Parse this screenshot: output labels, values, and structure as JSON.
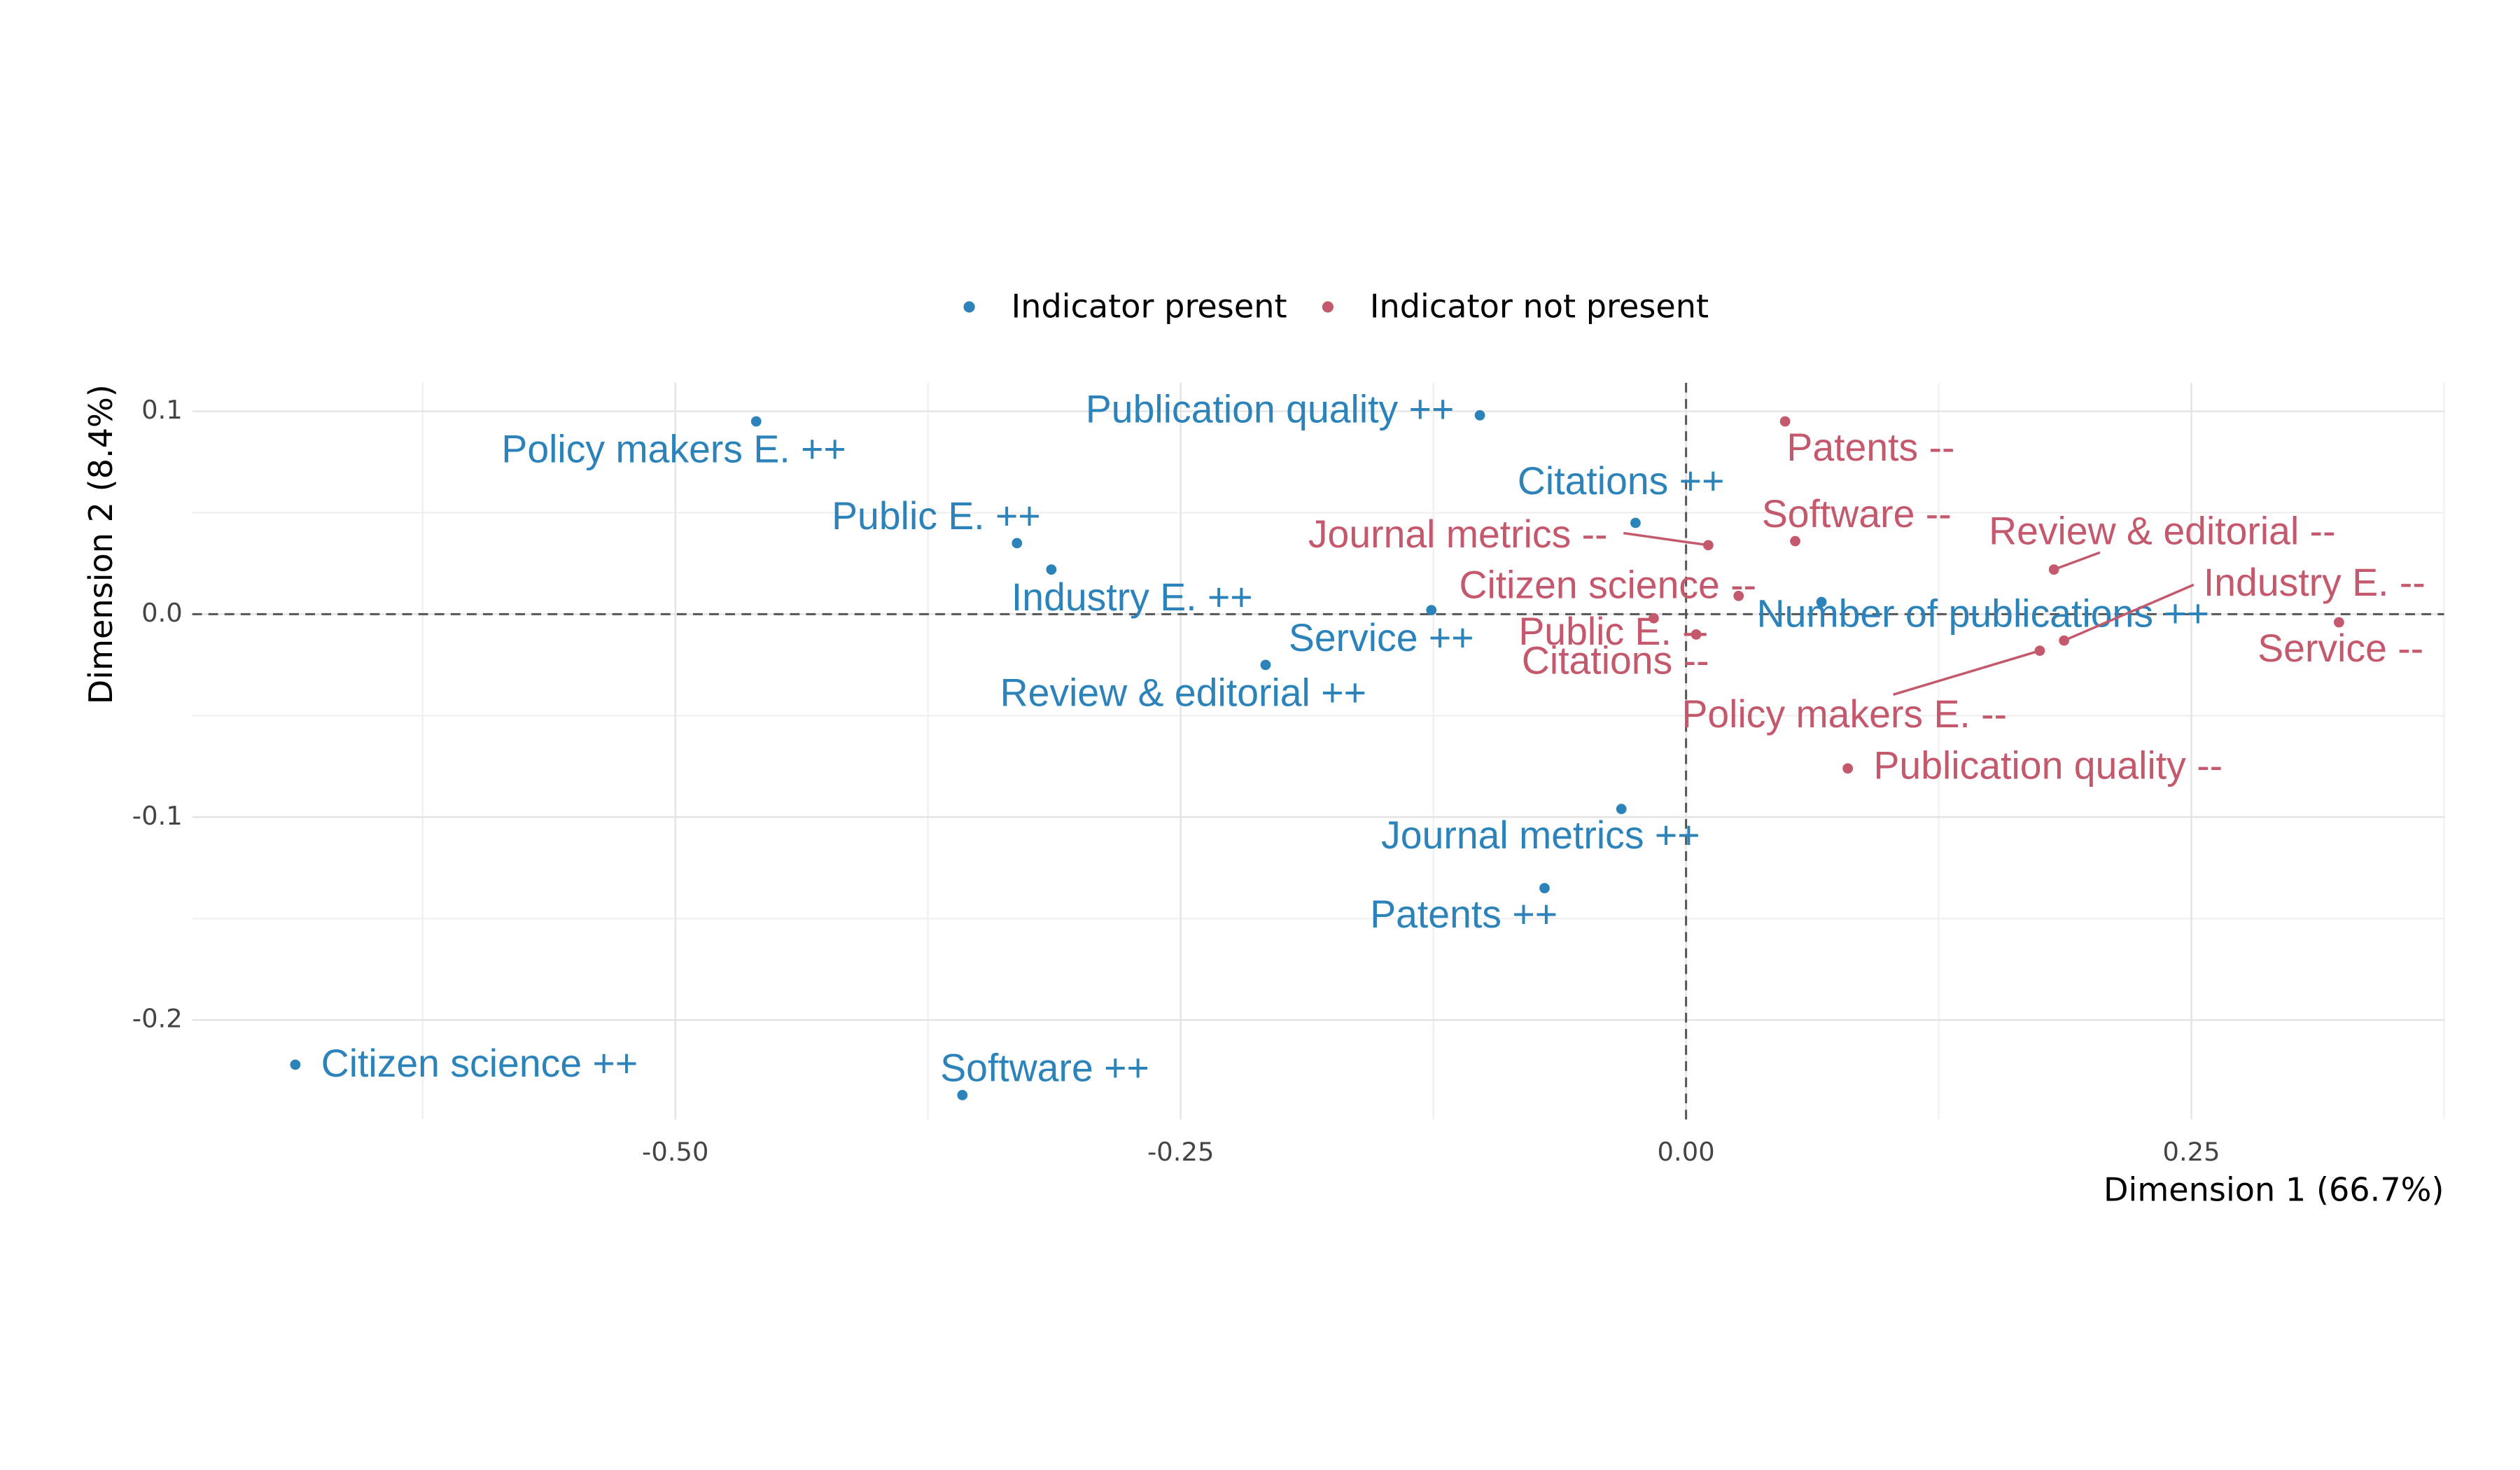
{
  "chart_data": {
    "type": "scatter",
    "x_label": "Dimension 1 (66.7%)",
    "y_label": "Dimension 2 (8.4%)",
    "xlim": [
      -0.739,
      0.375
    ],
    "ylim": [
      -0.249,
      0.114
    ],
    "xticks": [
      {
        "value": -0.5,
        "label": "-0.50"
      },
      -0.25,
      {
        "value": 0,
        "label": "0.00"
      },
      0.25
    ],
    "yticks": [
      -0.2,
      -0.1,
      {
        "value": 0,
        "label": "0.0"
      },
      0.1
    ],
    "hline": 0,
    "vline": 0,
    "grid": true,
    "legend": "top",
    "series": [
      {
        "name": "Indicator present",
        "color": "#2b83ba",
        "labels": [
          "Policy makers E. ++",
          "Publication quality ++",
          "Public E. ++",
          "Industry E. ++",
          "Citations ++",
          "Service ++",
          "Review & editorial ++",
          "Number of publications ++",
          "Journal metrics ++",
          "Patents ++",
          "Citizen science ++",
          "Software ++"
        ],
        "x": [
          -0.46,
          -0.102,
          -0.331,
          -0.314,
          -0.025,
          -0.126,
          -0.208,
          0.067,
          -0.032,
          -0.07,
          -0.688,
          -0.358
        ],
        "y": [
          0.095,
          0.098,
          0.035,
          0.022,
          0.045,
          0.002,
          -0.025,
          0.006,
          -0.096,
          -0.135,
          -0.222,
          -0.237
        ]
      },
      {
        "name": "Indicator not present",
        "color": "#c4586c",
        "labels": [
          "Patents --",
          "Software --",
          "Journal metrics --",
          "Review & editorial --",
          "Citizen science --",
          "Citations --",
          "Public E. --",
          "Industry E. --",
          "Service --",
          "Publication quality --",
          "Policy makers E. --"
        ],
        "x": [
          0.049,
          0.054,
          0.011,
          0.182,
          0.026,
          0.005,
          -0.016,
          0.187,
          0.323,
          0.08,
          0.175
        ],
        "y": [
          0.095,
          0.036,
          0.034,
          0.022,
          0.009,
          -0.01,
          -0.002,
          -0.013,
          -0.004,
          -0.076,
          -0.018
        ]
      }
    ]
  }
}
